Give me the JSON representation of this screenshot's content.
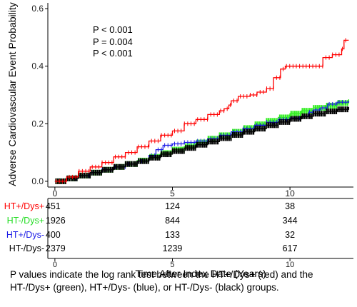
{
  "chart_data": {
    "type": "line",
    "ylabel": "Adverse Cardiovascular Event Probability",
    "xlabel": "Time After Index Date (Years)",
    "xlim": [
      -0.3,
      12.7
    ],
    "ylim": [
      -0.02,
      0.62
    ],
    "x_ticks": [
      0,
      5,
      10
    ],
    "y_ticks": [
      0.0,
      0.2,
      0.4,
      0.6
    ],
    "x_tick_labels": [
      "0",
      "5",
      "10"
    ],
    "y_tick_labels": [
      "0.0",
      "0.2",
      "0.4",
      "0.6"
    ],
    "grid": false,
    "censor_marks": true,
    "series": [
      {
        "name": "HT+/Dys+",
        "color": "#ff0000",
        "points": [
          [
            0,
            0
          ],
          [
            0.5,
            0.015
          ],
          [
            1,
            0.035
          ],
          [
            1.5,
            0.05
          ],
          [
            2,
            0.065
          ],
          [
            2.5,
            0.085
          ],
          [
            3,
            0.1
          ],
          [
            3.5,
            0.12
          ],
          [
            4,
            0.14
          ],
          [
            4.5,
            0.16
          ],
          [
            5,
            0.175
          ],
          [
            5.5,
            0.2
          ],
          [
            6,
            0.215
          ],
          [
            6.5,
            0.232
          ],
          [
            7,
            0.245
          ],
          [
            7.2,
            0.252
          ],
          [
            7.4,
            0.265
          ],
          [
            7.5,
            0.28
          ],
          [
            7.8,
            0.295
          ],
          [
            8.3,
            0.3
          ],
          [
            8.6,
            0.31
          ],
          [
            9,
            0.322
          ],
          [
            9.3,
            0.36
          ],
          [
            9.6,
            0.39
          ],
          [
            9.8,
            0.4
          ],
          [
            10.5,
            0.4
          ],
          [
            11,
            0.4
          ],
          [
            11.4,
            0.43
          ],
          [
            11.8,
            0.44
          ],
          [
            12.2,
            0.46
          ],
          [
            12.3,
            0.49
          ],
          [
            12.5,
            0.49
          ]
        ]
      },
      {
        "name": "HT-/Dys+",
        "color": "#33ee22",
        "points": [
          [
            0,
            0
          ],
          [
            0.5,
            0.01
          ],
          [
            1,
            0.02
          ],
          [
            1.5,
            0.03
          ],
          [
            2,
            0.04
          ],
          [
            2.5,
            0.05
          ],
          [
            3,
            0.06
          ],
          [
            3.5,
            0.072
          ],
          [
            4,
            0.085
          ],
          [
            4.5,
            0.098
          ],
          [
            5,
            0.11
          ],
          [
            5.5,
            0.122
          ],
          [
            6,
            0.135
          ],
          [
            6.5,
            0.148
          ],
          [
            7,
            0.16
          ],
          [
            7.5,
            0.172
          ],
          [
            8,
            0.185
          ],
          [
            8.5,
            0.198
          ],
          [
            9,
            0.21
          ],
          [
            9.5,
            0.222
          ],
          [
            10,
            0.235
          ],
          [
            10.5,
            0.245
          ],
          [
            11,
            0.255
          ],
          [
            11.5,
            0.263
          ],
          [
            12,
            0.272
          ],
          [
            12.5,
            0.285
          ]
        ]
      },
      {
        "name": "HT+/Dys-",
        "color": "#1a1ae6",
        "points": [
          [
            0,
            0
          ],
          [
            0.5,
            0.01
          ],
          [
            1,
            0.02
          ],
          [
            1.5,
            0.03
          ],
          [
            2,
            0.04
          ],
          [
            2.5,
            0.05
          ],
          [
            3,
            0.06
          ],
          [
            3.5,
            0.07
          ],
          [
            4,
            0.09
          ],
          [
            4.3,
            0.11
          ],
          [
            4.6,
            0.125
          ],
          [
            5,
            0.13
          ],
          [
            5.5,
            0.135
          ],
          [
            6,
            0.14
          ],
          [
            6.5,
            0.148
          ],
          [
            7,
            0.16
          ],
          [
            7.5,
            0.172
          ],
          [
            8,
            0.183
          ],
          [
            8.5,
            0.195
          ],
          [
            9,
            0.205
          ],
          [
            9.5,
            0.215
          ],
          [
            10,
            0.22
          ],
          [
            10.5,
            0.225
          ],
          [
            10.8,
            0.24
          ],
          [
            11,
            0.248
          ],
          [
            11.3,
            0.255
          ],
          [
            11.6,
            0.268
          ],
          [
            12,
            0.275
          ],
          [
            12.5,
            0.28
          ]
        ]
      },
      {
        "name": "HT-/Dys-",
        "color": "#000000",
        "points": [
          [
            0,
            0
          ],
          [
            0.5,
            0.01
          ],
          [
            1,
            0.02
          ],
          [
            1.5,
            0.03
          ],
          [
            2,
            0.04
          ],
          [
            2.5,
            0.05
          ],
          [
            3,
            0.06
          ],
          [
            3.5,
            0.07
          ],
          [
            4,
            0.082
          ],
          [
            4.5,
            0.094
          ],
          [
            5,
            0.105
          ],
          [
            5.5,
            0.116
          ],
          [
            6,
            0.127
          ],
          [
            6.5,
            0.138
          ],
          [
            7,
            0.15
          ],
          [
            7.5,
            0.161
          ],
          [
            8,
            0.172
          ],
          [
            8.5,
            0.183
          ],
          [
            9,
            0.195
          ],
          [
            9.5,
            0.206
          ],
          [
            10,
            0.217
          ],
          [
            10.5,
            0.226
          ],
          [
            11,
            0.235
          ],
          [
            11.5,
            0.243
          ],
          [
            12,
            0.25
          ],
          [
            12.5,
            0.258
          ]
        ]
      }
    ],
    "annotations": [
      {
        "text": "P < 0.001",
        "color": "#22e61a"
      },
      {
        "text": "P = 0.004",
        "color": "#1a1ae6"
      },
      {
        "text": "P < 0.001",
        "color": "#000000"
      }
    ],
    "risk_table": {
      "times": [
        0,
        5,
        10
      ],
      "tick_labels": [
        "0",
        "5",
        "10"
      ],
      "rows": [
        {
          "label": "HT+/Dys+",
          "color": "#ff0000",
          "values": [
            "451",
            "124",
            "38"
          ]
        },
        {
          "label": "HT-/Dys+",
          "color": "#22dd22",
          "values": [
            "1926",
            "844",
            "344"
          ]
        },
        {
          "label": "HT+/Dys-",
          "color": "#1a1ae6",
          "values": [
            "400",
            "133",
            "32"
          ]
        },
        {
          "label": "HT-/Dys-",
          "color": "#000000",
          "values": [
            "2379",
            "1239",
            "617"
          ]
        }
      ]
    }
  },
  "caption": "P values indicate the log rank test between the HT+/Dys+ (red) and the HT-/Dys+ (green), HT+/Dys- (blue), or HT-/Dys- (black) groups."
}
